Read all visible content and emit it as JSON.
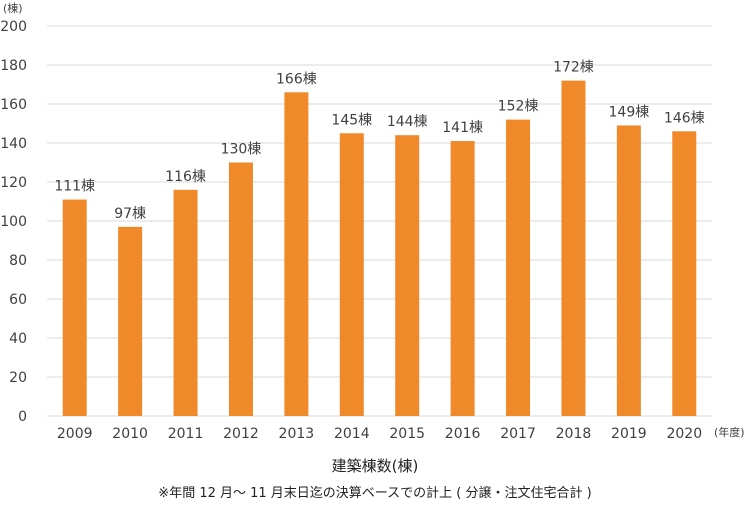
{
  "chart_data": {
    "type": "bar",
    "categories": [
      "2009",
      "2010",
      "2011",
      "2012",
      "2013",
      "2014",
      "2015",
      "2016",
      "2017",
      "2018",
      "2019",
      "2020"
    ],
    "values": [
      111,
      97,
      116,
      130,
      166,
      145,
      144,
      141,
      152,
      172,
      149,
      146
    ],
    "value_suffix": "棟",
    "ylim": [
      0,
      200
    ],
    "yticks": [
      0,
      20,
      40,
      60,
      80,
      100,
      120,
      140,
      160,
      180,
      200
    ],
    "y_unit_label": "(棟)",
    "x_unit_label": "(年度)",
    "xlabel": "建築棟数(棟)",
    "footnote": "※年間 12 月～ 11 月末日迄の決算ベースでの計上 ( 分譲・注文住宅合計 )",
    "bar_color": "#F0892A",
    "grid": true,
    "grid_color": "#D9D9D9"
  }
}
